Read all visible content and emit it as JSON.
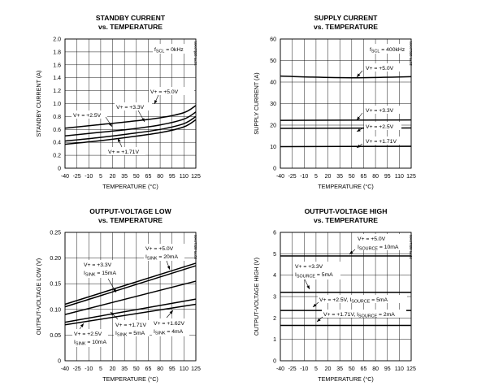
{
  "chart_data": [
    {
      "type": "line",
      "title": "STANDBY CURRENT",
      "subtitle": "vs. TEMPERATURE",
      "xlabel": "TEMPERATURE (°C)",
      "ylabel": "STANDBY CURRENT (A)",
      "code": "MAX7328 toc01",
      "xlim": [
        -40,
        125
      ],
      "ylim": [
        0,
        2.0
      ],
      "x_ticks": [
        -40,
        -25,
        -10,
        5,
        20,
        35,
        50,
        65,
        80,
        95,
        110,
        125
      ],
      "y_ticks": [
        0,
        0.2,
        0.4,
        0.6,
        0.8,
        1.0,
        1.2,
        1.4,
        1.6,
        1.8,
        2.0
      ],
      "y_tick_labels": [
        "0",
        "0.2",
        "0.4",
        "0.6",
        "0.8",
        "1.0",
        "1.2",
        "1.4",
        "1.6",
        "1.8",
        "2.0"
      ],
      "grid": true,
      "condition": {
        "prefix": "f",
        "sub": "SCL",
        "suffix": " = 0kHz"
      },
      "series": [
        {
          "name": "V+ = +5.0V",
          "x": [
            -40,
            0,
            40,
            80,
            110,
            125
          ],
          "y": [
            0.62,
            0.67,
            0.72,
            0.78,
            0.86,
            0.97
          ]
        },
        {
          "name": "V+ = +3.3V",
          "x": [
            -40,
            0,
            40,
            80,
            110,
            125
          ],
          "y": [
            0.5,
            0.55,
            0.6,
            0.67,
            0.76,
            0.87
          ]
        },
        {
          "name": "V+ = +2.5V",
          "x": [
            -40,
            0,
            40,
            80,
            110,
            125
          ],
          "y": [
            0.42,
            0.47,
            0.53,
            0.6,
            0.69,
            0.8
          ]
        },
        {
          "name": "V+ = +1.71V",
          "x": [
            -40,
            0,
            40,
            80,
            110,
            125
          ],
          "y": [
            0.37,
            0.42,
            0.48,
            0.55,
            0.64,
            0.75
          ]
        }
      ]
    },
    {
      "type": "line",
      "title": "SUPPLY CURRENT",
      "subtitle": "vs. TEMPERATURE",
      "xlabel": "TEMPERATURE (°C)",
      "ylabel": "SUPPLY CURRENT (A)",
      "code": "MAX7328 toc02",
      "xlim": [
        -40,
        125
      ],
      "ylim": [
        0,
        60
      ],
      "x_ticks": [
        -40,
        -25,
        -10,
        5,
        20,
        35,
        50,
        65,
        80,
        95,
        110,
        125
      ],
      "y_ticks": [
        0,
        10,
        20,
        30,
        40,
        50,
        60
      ],
      "y_tick_labels": [
        "0",
        "10",
        "20",
        "30",
        "40",
        "50",
        "60"
      ],
      "grid": true,
      "condition": {
        "prefix": "f",
        "sub": "SCL",
        "suffix": " = 400kHz"
      },
      "series": [
        {
          "name": "V+ = +5.0V",
          "x": [
            -40,
            0,
            50,
            90,
            125
          ],
          "y": [
            42.8,
            42.3,
            42.0,
            42.2,
            42.5
          ]
        },
        {
          "name": "V+ = +3.3V",
          "x": [
            -40,
            125
          ],
          "y": [
            22.2,
            22.4
          ]
        },
        {
          "name": "V+ = +2.5V",
          "x": [
            -40,
            125
          ],
          "y": [
            18.5,
            18.7
          ]
        },
        {
          "name": "V+ = +1.71V",
          "x": [
            -40,
            125
          ],
          "y": [
            10.0,
            10.2
          ]
        }
      ]
    },
    {
      "type": "line",
      "title": "OUTPUT-VOLTAGE LOW",
      "subtitle": "vs. TEMPERATURE",
      "xlabel": "TEMPERATURE (°C)",
      "ylabel": "OUTPUT-VOLTAGE LOW (V)",
      "code": "MAX7328 toc03",
      "xlim": [
        -40,
        125
      ],
      "ylim": [
        0,
        0.25
      ],
      "x_ticks": [
        -40,
        -25,
        -10,
        5,
        20,
        35,
        50,
        65,
        80,
        95,
        110,
        125
      ],
      "y_ticks": [
        0,
        0.05,
        0.1,
        0.15,
        0.2,
        0.25
      ],
      "y_tick_labels": [
        "0",
        "0.05",
        "0.10",
        "0.15",
        "0.20",
        "0.25"
      ],
      "grid": true,
      "series": [
        {
          "name": "V+ = +5.0V, ISINK = 20mA",
          "x": [
            -40,
            125
          ],
          "y": [
            0.11,
            0.19
          ]
        },
        {
          "name": "V+ = +3.3V, ISINK = 15mA",
          "x": [
            -40,
            125
          ],
          "y": [
            0.105,
            0.185
          ]
        },
        {
          "name": "V+ = +1.71V, ISINK = 5mA",
          "x": [
            -40,
            125
          ],
          "y": [
            0.09,
            0.155
          ]
        },
        {
          "name": "V+ = +2.5V, ISINK = 10mA",
          "x": [
            -40,
            125
          ],
          "y": [
            0.075,
            0.12
          ]
        },
        {
          "name": "V+ = +1.62V, ISINK = 4mA",
          "x": [
            -40,
            125
          ],
          "y": [
            0.07,
            0.11
          ]
        }
      ]
    },
    {
      "type": "line",
      "title": "OUTPUT-VOLTAGE HIGH",
      "subtitle": "vs. TEMPERATURE",
      "xlabel": "TEMPERATURE (°C)",
      "ylabel": "OUTPUT-VOLTAGE HIGH (V)",
      "code": "MAX7328 toc04",
      "xlim": [
        -40,
        125
      ],
      "ylim": [
        0,
        6
      ],
      "x_ticks": [
        -40,
        -25,
        -10,
        5,
        20,
        35,
        50,
        65,
        80,
        95,
        110,
        125
      ],
      "y_ticks": [
        0,
        1,
        2,
        3,
        4,
        5,
        6
      ],
      "y_tick_labels": [
        "0",
        "1",
        "2",
        "3",
        "4",
        "5",
        "6"
      ],
      "grid": true,
      "series": [
        {
          "name": "V+ = +5.0V, ISOURCE = 10mA",
          "x": [
            -40,
            125
          ],
          "y": [
            4.9,
            4.9
          ]
        },
        {
          "name": "V+ = +3.3V, ISOURCE = 5mA",
          "x": [
            -40,
            125
          ],
          "y": [
            3.2,
            3.2
          ]
        },
        {
          "name": "V+ = +2.5V, ISOURCE = 5mA",
          "x": [
            -40,
            125
          ],
          "y": [
            2.35,
            2.35
          ]
        },
        {
          "name": "V+ = +1.71V, ISOURCE = 2mA",
          "x": [
            -40,
            125
          ],
          "y": [
            1.65,
            1.65
          ]
        }
      ]
    }
  ],
  "labels": {
    "c0": {
      "l0": {
        "pre": "V+ = +5.0V"
      },
      "l1": {
        "pre": "V+ = +3.3V"
      },
      "l2": {
        "pre": "V+ = +2.5V"
      },
      "l3": {
        "pre": "V+ = +1.71V"
      }
    },
    "c1": {
      "l0": {
        "pre": "V+ = +5.0V"
      },
      "l1": {
        "pre": "V+ = +3.3V"
      },
      "l2": {
        "pre": "V+ = +2.5V"
      },
      "l3": {
        "pre": "V+ = +1.71V"
      }
    },
    "c2": {
      "l0a": {
        "pre": "V+ = +5.0V"
      },
      "l0b": {
        "pre": "I",
        "sub": "SINK",
        "post": " = 20mA"
      },
      "l1a": {
        "pre": "V+ = +3.3V"
      },
      "l1b": {
        "pre": "I",
        "sub": "SINK",
        "post": " = 15mA"
      },
      "l2a": {
        "pre": "V+ = +1.71V"
      },
      "l2b": {
        "pre": "I",
        "sub": "SINK",
        "post": " = 5mA"
      },
      "l3a": {
        "pre": "V+ = +2.5V"
      },
      "l3b": {
        "pre": "I",
        "sub": "SINK",
        "post": " = 10mA"
      },
      "l4a": {
        "pre": "V+ = +1.62V"
      },
      "l4b": {
        "pre": "I",
        "sub": "SINK",
        "post": " = 4mA"
      }
    },
    "c3": {
      "l0a": {
        "pre": "V+ = +5.0V"
      },
      "l0b": {
        "pre": "I",
        "sub": "SOURCE",
        "post": " = 10mA"
      },
      "l1a": {
        "pre": "V+ = +3.3V"
      },
      "l1b": {
        "pre": "I",
        "sub": "SOURCE",
        "post": " = 5mA"
      },
      "l2": {
        "pre": "V+ = +2.5V, I",
        "sub": "SOURCE",
        "post": " = 5mA"
      },
      "l3": {
        "pre": "V+ = +1.71V, I",
        "sub": "SOURCE",
        "post": " = 2mA"
      }
    }
  }
}
